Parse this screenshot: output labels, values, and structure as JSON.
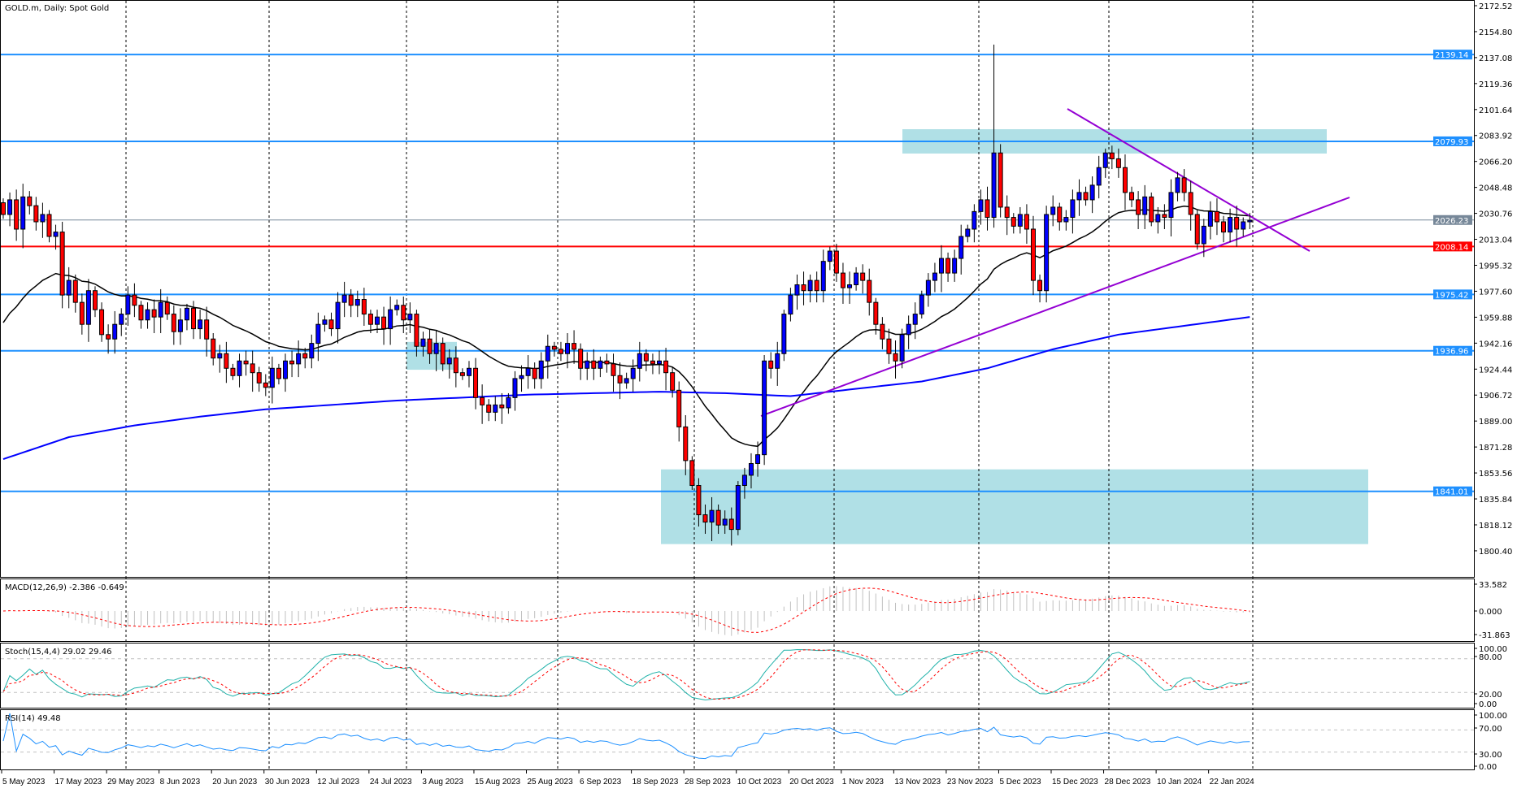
{
  "chart_title": "GOLD.m, Daily:  Spot Gold",
  "colors": {
    "bull": "#0000ff",
    "bear": "#ff0000",
    "level": "#1e90ff",
    "support_red": "#ff0000",
    "current": "#778899",
    "zone": "#b0e0e6",
    "trendline": "#9400d3",
    "ma_fast": "#000000",
    "ma_slow": "#0000ff",
    "macd_hist": "#c0c0c0",
    "macd_signal": "#ff0000",
    "stoch_main": "#20b2aa",
    "stoch_signal": "#ff0000",
    "rsi": "#1e90ff"
  },
  "price_axis": {
    "ticks": [
      "2172.52",
      "2154.80",
      "2137.08",
      "2119.36",
      "2101.64",
      "2083.92",
      "2066.20",
      "2048.48",
      "2030.76",
      "2013.04",
      "1995.32",
      "1977.60",
      "1959.88",
      "1942.16",
      "1924.44",
      "1906.72",
      "1889.00",
      "1871.28",
      "1853.56",
      "1835.84",
      "1818.12",
      "1800.40"
    ]
  },
  "levels": [
    {
      "price": "2139.14",
      "type": "resistance",
      "color": "#1e90ff"
    },
    {
      "price": "2079.93",
      "type": "resistance",
      "color": "#1e90ff"
    },
    {
      "price": "2026.23",
      "type": "current",
      "color": "#778899"
    },
    {
      "price": "2008.14",
      "type": "support",
      "color": "#ff0000"
    },
    {
      "price": "1975.42",
      "type": "support",
      "color": "#1e90ff"
    },
    {
      "price": "1936.96",
      "type": "support",
      "color": "#1e90ff"
    },
    {
      "price": "1841.01",
      "type": "support",
      "color": "#1e90ff"
    }
  ],
  "zones": [
    {
      "top": 2088.2,
      "bottom": 2071.6
    },
    {
      "top": 1856.0,
      "bottom": 1805.0
    },
    {
      "top": 1943.0,
      "bottom": 1924.0
    }
  ],
  "date_axis": [
    "5 May 2023",
    "17 May 2023",
    "29 May 2023",
    "8 Jun 2023",
    "20 Jun 2023",
    "30 Jun 2023",
    "12 Jul 2023",
    "24 Jul 2023",
    "3 Aug 2023",
    "15 Aug 2023",
    "25 Aug 2023",
    "6 Sep 2023",
    "18 Sep 2023",
    "28 Sep 2023",
    "10 Oct 2023",
    "20 Oct 2023",
    "1 Nov 2023",
    "13 Nov 2023",
    "23 Nov 2023",
    "5 Dec 2023",
    "15 Dec 2023",
    "28 Dec 2023",
    "10 Jan 2024",
    "22 Jan 2024"
  ],
  "indicators": {
    "macd": {
      "label": "MACD(12,26,9) -2.386 -0.649",
      "ticks": [
        "33.582",
        "0.000",
        "-31.863"
      ]
    },
    "stoch": {
      "label": "Stoch(15,4,4) 29.02 29.46",
      "ticks": [
        "100.00",
        "80.00",
        "20.00",
        "0.00"
      ]
    },
    "rsi": {
      "label": "RSI(14) 49.48",
      "ticks": [
        "100.00",
        "70.00",
        "30.00",
        "0.00"
      ]
    }
  },
  "chart_data": {
    "type": "candlestick",
    "symbol": "GOLD.m",
    "timeframe": "Daily",
    "ylim": [
      1790,
      2175
    ],
    "session_high": 2146.0,
    "closes": [
      2030,
      2040,
      2020,
      2042,
      2036,
      2025,
      2030,
      2015,
      2018,
      1975,
      1985,
      1970,
      1955,
      1978,
      1965,
      1948,
      1945,
      1955,
      1962,
      1975,
      1968,
      1958,
      1965,
      1960,
      1970,
      1962,
      1950,
      1958,
      1966,
      1952,
      1958,
      1945,
      1932,
      1935,
      1925,
      1920,
      1930,
      1928,
      1922,
      1915,
      1912,
      1925,
      1918,
      1930,
      1928,
      1935,
      1932,
      1942,
      1955,
      1958,
      1952,
      1970,
      1975,
      1968,
      1972,
      1962,
      1955,
      1960,
      1952,
      1965,
      1968,
      1958,
      1962,
      1940,
      1945,
      1935,
      1942,
      1928,
      1932,
      1922,
      1920,
      1925,
      1905,
      1900,
      1895,
      1900,
      1898,
      1905,
      1918,
      1920,
      1925,
      1918,
      1930,
      1940,
      1938,
      1935,
      1942,
      1938,
      1925,
      1930,
      1925,
      1930,
      1928,
      1920,
      1915,
      1918,
      1925,
      1935,
      1930,
      1928,
      1930,
      1922,
      1910,
      1885,
      1862,
      1845,
      1825,
      1820,
      1828,
      1818,
      1822,
      1815,
      1845,
      1852,
      1860,
      1866,
      1930,
      1925,
      1935,
      1962,
      1975,
      1982,
      1978,
      1985,
      1978,
      1998,
      2005,
      1990,
      1980,
      1982,
      1990,
      1985,
      1970,
      1955,
      1945,
      1935,
      1930,
      1948,
      1955,
      1962,
      1975,
      1985,
      1990,
      2000,
      1990,
      2000,
      2015,
      2020,
      2032,
      2040,
      2028,
      2072,
      2035,
      2028,
      2022,
      2030,
      2020,
      1985,
      1978,
      2030,
      2035,
      2025,
      2028,
      2040,
      2045,
      2040,
      2050,
      2062,
      2072,
      2068,
      2062,
      2045,
      2040,
      2030,
      2042,
      2025,
      2030,
      2028,
      2045,
      2055,
      2045,
      2030,
      2010,
      2022,
      2032,
      2025,
      2018,
      2028,
      2020,
      2025,
      2026
    ],
    "ma_slow_samples": [
      1863,
      1878,
      1886,
      1892,
      1897,
      1900,
      1903,
      1905,
      1907,
      1908,
      1909,
      1908,
      1906,
      1911,
      1916,
      1925,
      1938,
      1948,
      1954,
      1960
    ]
  }
}
